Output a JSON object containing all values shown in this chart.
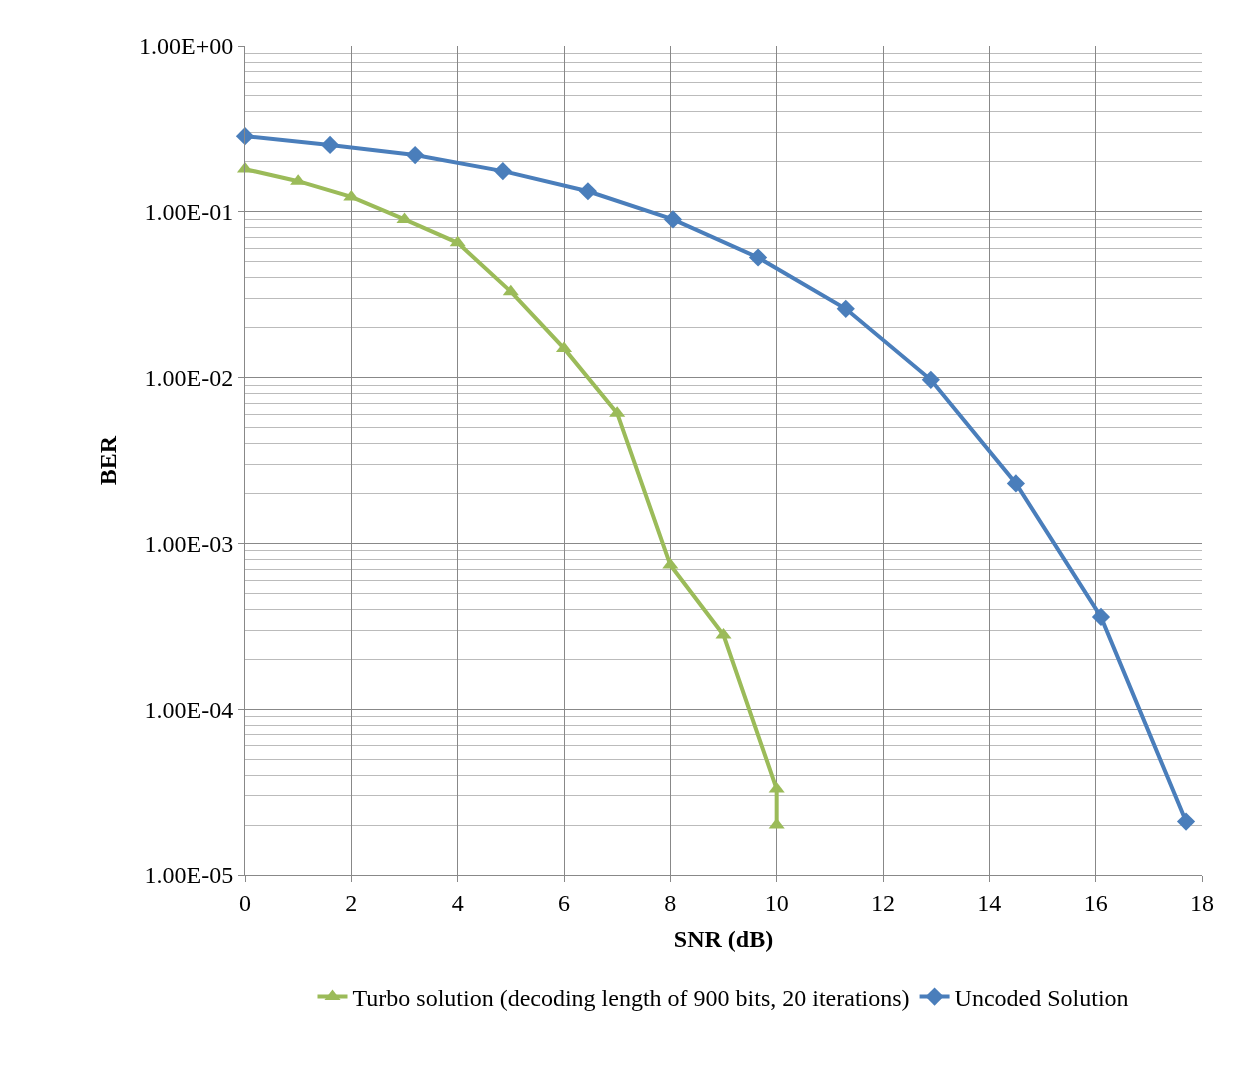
{
  "chart_data": {
    "type": "line",
    "xlabel": "SNR (dB)",
    "ylabel": "BER",
    "log": "y",
    "xlim": [
      0,
      18
    ],
    "xticks": [
      0,
      2,
      4,
      6,
      8,
      10,
      12,
      14,
      16,
      18
    ],
    "ylim": [
      1e-05,
      1
    ],
    "yticks": [
      {
        "value": 1,
        "label": "1.00E+00"
      },
      {
        "value": 0.1,
        "label": "1.00E-01"
      },
      {
        "value": 0.01,
        "label": "1.00E-02"
      },
      {
        "value": 0.001,
        "label": "1.00E-03"
      },
      {
        "value": 0.0001,
        "label": "1.00E-04"
      },
      {
        "value": 1e-05,
        "label": "1.00E-05"
      }
    ],
    "grid": true,
    "legend": "bottom",
    "series": [
      {
        "name": "Turbo solution (decoding length of 900 bits, 20 iterations)",
        "color": "#9bbb59",
        "marker": "triangle",
        "x": [
          0,
          1,
          2,
          3,
          4,
          5,
          6,
          7,
          8,
          9,
          10,
          10
        ],
        "values": [
          0.181,
          0.153,
          0.123,
          0.09,
          0.065,
          0.033,
          0.015,
          0.0061,
          0.00074,
          0.00028,
          3.3e-05,
          2e-05
        ]
      },
      {
        "name": "Uncoded Solution",
        "color": "#4a7ebb",
        "marker": "diamond",
        "x": [
          0,
          1.6,
          3.2,
          4.85,
          6.45,
          8.05,
          9.65,
          11.3,
          12.9,
          14.5,
          16.1,
          17.7
        ],
        "values": [
          0.286,
          0.253,
          0.22,
          0.176,
          0.133,
          0.09,
          0.053,
          0.026,
          0.0097,
          0.0023,
          0.00036,
          2.1e-05
        ]
      }
    ]
  }
}
